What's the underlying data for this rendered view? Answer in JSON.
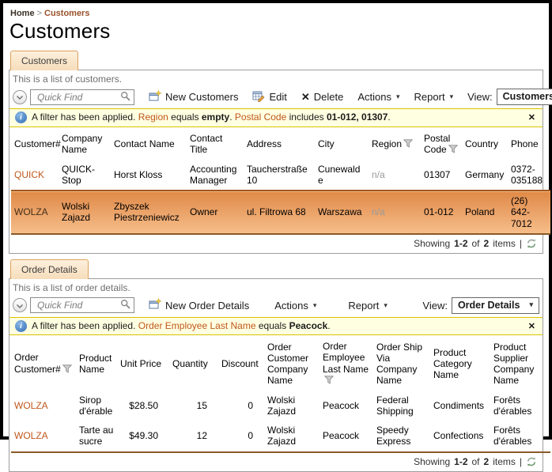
{
  "breadcrumb": {
    "home": "Home",
    "separator": ">",
    "current": "Customers"
  },
  "page_title": "Customers",
  "colors": {
    "accent_link": "#C1571B",
    "selected_row_top": "#E08A48",
    "selected_row_bottom": "#F6BD8A",
    "filter_bar_bg": "#FFFFE1",
    "filter_bar_border": "#D8C300",
    "tab_bg": "#F6DDBA",
    "tab_border": "#DCA25F"
  },
  "sections": [
    {
      "tab_label": "Customers",
      "description": "This is a list of customers.",
      "toolbar": {
        "quick_find_placeholder": "Quick Find",
        "new_label": "New Customers",
        "edit_label": "Edit",
        "delete_label": "Delete",
        "actions_label": "Actions",
        "report_label": "Report",
        "view_label": "View:",
        "view_value": "Customers",
        "dropdown_arrow": "▾",
        "delete_glyph": "✕"
      },
      "filter": {
        "segments": [
          {
            "text": "A filter has been applied.",
            "style": "normal"
          },
          {
            "text": "Region",
            "style": "field"
          },
          {
            "text": "equals",
            "style": "normal"
          },
          {
            "text": "empty",
            "style": "bold"
          },
          {
            "text": ".",
            "style": "punct"
          },
          {
            "text": "Postal Code",
            "style": "field"
          },
          {
            "text": "includes",
            "style": "normal"
          },
          {
            "text": "01-012, 01307",
            "style": "bold"
          },
          {
            "text": ".",
            "style": "punct"
          }
        ],
        "close_label": "✕"
      },
      "table": {
        "columns": [
          {
            "label": "Customer#",
            "filter": false
          },
          {
            "label": "Company Name",
            "filter": false
          },
          {
            "label": "Contact Name",
            "filter": false
          },
          {
            "label": "Contact Title",
            "filter": false
          },
          {
            "label": "Address",
            "filter": false
          },
          {
            "label": "City",
            "filter": false
          },
          {
            "label": "Region",
            "filter": true
          },
          {
            "label": "Postal Code",
            "filter": true
          },
          {
            "label": "Country",
            "filter": false
          },
          {
            "label": "Phone",
            "filter": false
          }
        ],
        "rows": [
          {
            "selected": false,
            "cells": [
              "QUICK",
              "QUICK-Stop",
              "Horst Kloss",
              "Accounting Manager",
              "Taucherstraße 10",
              "Cunewalde",
              "n/a",
              "01307",
              "Germany",
              "0372-035188"
            ]
          },
          {
            "selected": true,
            "cells": [
              "WOLZA",
              "Wolski Zajazd",
              "Zbyszek Piestrzeniewicz",
              "Owner",
              "ul. Filtrowa 68",
              "Warszawa",
              "n/a",
              "01-012",
              "Poland",
              "(26) 642-7012"
            ]
          }
        ]
      },
      "footer": {
        "showing": "Showing",
        "range": "1-2",
        "of": "of",
        "total": "2",
        "items": "items",
        "separator": "|"
      }
    },
    {
      "tab_label": "Order Details",
      "description": "This is a list of order details.",
      "toolbar": {
        "quick_find_placeholder": "Quick Find",
        "new_label": "New Order Details",
        "actions_label": "Actions",
        "report_label": "Report",
        "view_label": "View:",
        "view_value": "Order Details",
        "dropdown_arrow": "▾"
      },
      "filter": {
        "segments": [
          {
            "text": "A filter has been applied.",
            "style": "normal"
          },
          {
            "text": "Order Employee Last Name",
            "style": "field"
          },
          {
            "text": "equals",
            "style": "normal"
          },
          {
            "text": "Peacock",
            "style": "bold"
          },
          {
            "text": ".",
            "style": "punct"
          }
        ],
        "close_label": "✕"
      },
      "table": {
        "columns": [
          {
            "label": "Order Customer#",
            "filter": true
          },
          {
            "label": "Product Name",
            "filter": false
          },
          {
            "label": "Unit Price",
            "filter": false
          },
          {
            "label": "Quantity",
            "filter": false
          },
          {
            "label": "Discount",
            "filter": false
          },
          {
            "label": "Order Customer Company Name",
            "filter": false
          },
          {
            "label": "Order Employee Last Name",
            "filter": true
          },
          {
            "label": "Order Ship Via Company Name",
            "filter": false
          },
          {
            "label": "Product Category Name",
            "filter": false
          },
          {
            "label": "Product Supplier Company Name",
            "filter": false
          }
        ],
        "rows": [
          {
            "selected": false,
            "cells": [
              "WOLZA",
              "Sirop d'érable",
              "$28.50",
              "15",
              "0",
              "Wolski Zajazd",
              "Peacock",
              "Federal Shipping",
              "Condiments",
              "Forêts d'érables"
            ]
          },
          {
            "selected": false,
            "cells": [
              "WOLZA",
              "Tarte au sucre",
              "$49.30",
              "12",
              "0",
              "Wolski Zajazd",
              "Peacock",
              "Speedy Express",
              "Confections",
              "Forêts d'érables"
            ]
          }
        ]
      },
      "footer": {
        "showing": "Showing",
        "range": "1-2",
        "of": "of",
        "total": "2",
        "items": "items",
        "separator": "|"
      }
    }
  ]
}
